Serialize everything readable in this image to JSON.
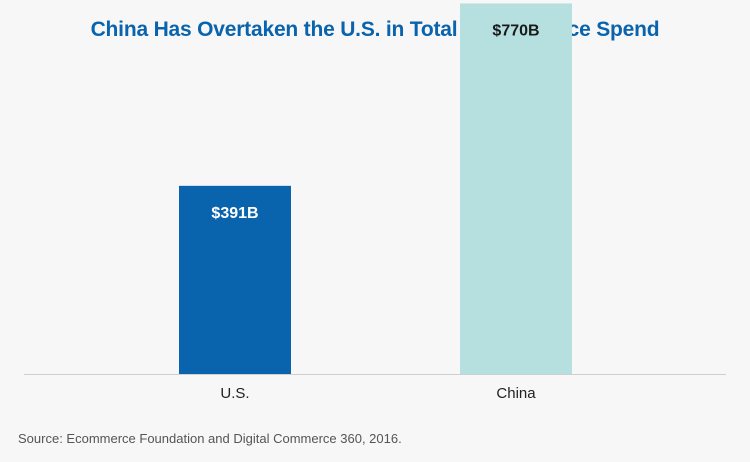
{
  "chart_data": {
    "type": "bar",
    "title": "China Has Overtaken the U.S. in Total E-Commerce Spend",
    "categories": [
      "U.S.",
      "China"
    ],
    "values": [
      391,
      770
    ],
    "value_labels": [
      "$391B",
      "$770B"
    ],
    "unit": "billion USD",
    "ylim": [
      0,
      800
    ],
    "grid": false,
    "xlabel": "",
    "ylabel": "",
    "colors": [
      "#0a63ad",
      "#b5e0df"
    ],
    "label_colors": [
      "#ffffff",
      "#1a1a1a"
    ],
    "source": "Source: Ecommerce Foundation and Digital Commerce 360, 2016."
  }
}
